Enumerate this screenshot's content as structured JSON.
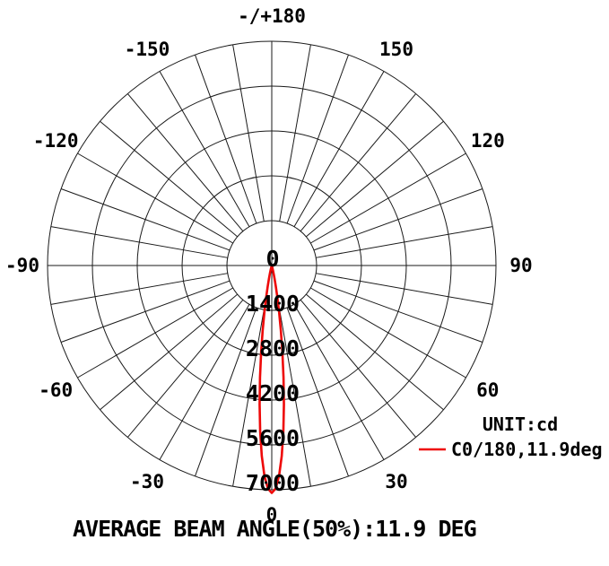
{
  "page": {
    "background_color": "#ffffff",
    "grid_color": "#1a1a1a"
  },
  "chart_data": {
    "type": "line",
    "subtype": "polar-intensity-distribution",
    "title": "",
    "unit": "cd",
    "unit_label": "UNIT:cd",
    "footer": "AVERAGE BEAM ANGLE(50%):11.9 DEG",
    "average_beam_angle_50pct_deg": 11.9,
    "peak_intensity_cd": 7100,
    "angle_zero_position": "bottom",
    "angle_grid_step_deg": 10,
    "angle_label_step_deg": 30,
    "radial_ticks": [
      "0",
      "1400",
      "2800",
      "4200",
      "5600",
      "7000"
    ],
    "radial_tick_values": [
      0,
      1400,
      2800,
      4200,
      5600,
      7000
    ],
    "radial_max": 7000,
    "angle_labels": [
      {
        "angle": 0,
        "label": "0"
      },
      {
        "angle": 30,
        "label": "30"
      },
      {
        "angle": 60,
        "label": "60"
      },
      {
        "angle": 90,
        "label": "90"
      },
      {
        "angle": 120,
        "label": "120"
      },
      {
        "angle": 150,
        "label": "150"
      },
      {
        "angle": 180,
        "label": "-/+180"
      },
      {
        "angle": -150,
        "label": "-150"
      },
      {
        "angle": -120,
        "label": "-120"
      },
      {
        "angle": -90,
        "label": "-90"
      },
      {
        "angle": -60,
        "label": "-60"
      },
      {
        "angle": -30,
        "label": "-30"
      }
    ],
    "legend": [
      {
        "name": "C0/180,11.9deg",
        "color": "#ee0909"
      }
    ],
    "series": [
      {
        "name": "C0/180,11.9deg",
        "color": "#ee0909",
        "angles_deg": [
          -18,
          -17,
          -16,
          -15,
          -14,
          -13,
          -12,
          -11,
          -10,
          -9,
          -8,
          -7,
          -6,
          -5,
          -4,
          -3,
          -2,
          -1,
          0,
          1,
          2,
          3,
          4,
          5,
          6,
          7,
          8,
          9,
          10,
          11,
          12,
          13,
          14,
          15,
          16,
          17,
          18
        ],
        "intensities_cd": [
          12,
          25,
          47,
          87,
          153,
          260,
          423,
          664,
          1002,
          1454,
          2028,
          2720,
          3509,
          4352,
          5191,
          5953,
          6565,
          6962,
          7100,
          6962,
          6565,
          5953,
          5191,
          4352,
          3509,
          2720,
          2028,
          1454,
          1002,
          664,
          423,
          260,
          153,
          87,
          47,
          25,
          12
        ]
      }
    ]
  }
}
